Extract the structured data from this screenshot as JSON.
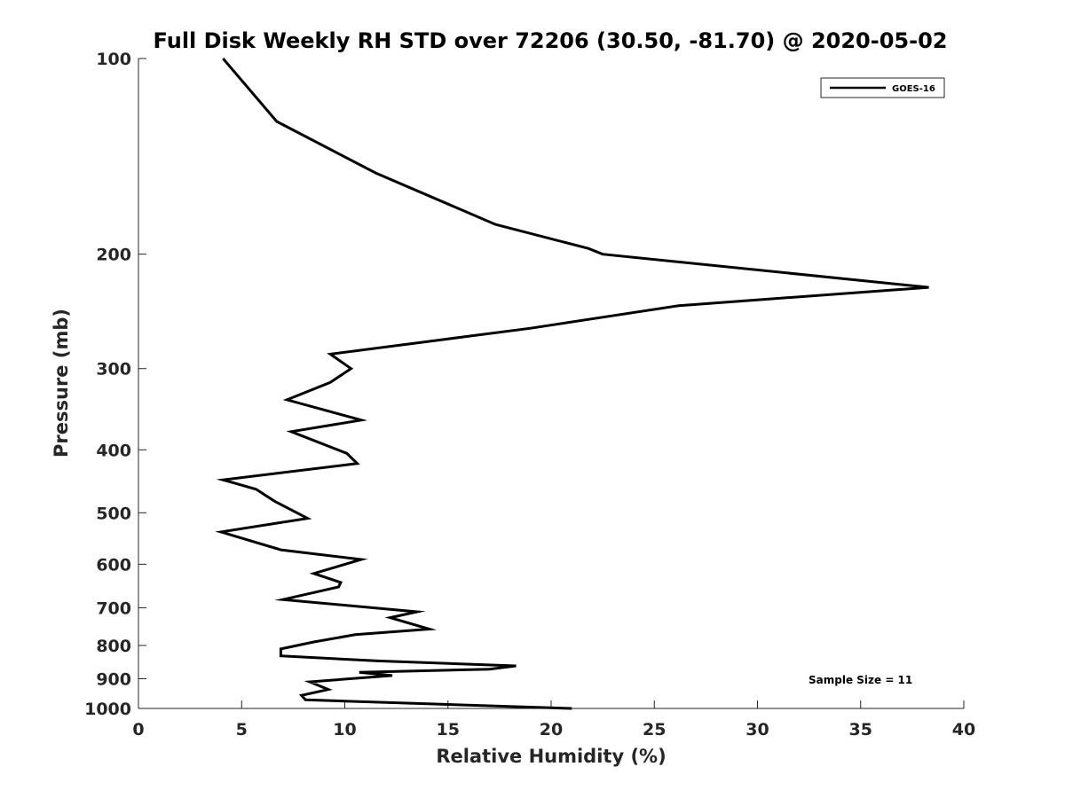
{
  "chart_data": {
    "type": "line",
    "title": "Full Disk Weekly RH STD over 72206 (30.50, -81.70) @ 2020-05-02",
    "xlabel": "Relative Humidity (%)",
    "ylabel": "Pressure (mb)",
    "xlim": [
      0,
      40
    ],
    "ylim": [
      100,
      1000
    ],
    "yscale": "log",
    "y_reversed": true,
    "x_ticks": [
      "0",
      "5",
      "10",
      "15",
      "20",
      "25",
      "30",
      "35",
      "40"
    ],
    "y_ticks": [
      "100",
      "200",
      "300",
      "400",
      "500",
      "600",
      "700",
      "800",
      "900",
      "1000"
    ],
    "grid": false,
    "legend_position": "top-right",
    "annotation": "Sample Size = 11",
    "series": [
      {
        "name": "GOES-16",
        "color": "#000000",
        "x": [
          4.1,
          6.7,
          11.5,
          17.3,
          21.8,
          22.5,
          38.3,
          26.2,
          19.0,
          9.3,
          10.3,
          9.3,
          7.2,
          10.8,
          7.4,
          10.1,
          10.6,
          4.1,
          5.7,
          6.6,
          8.2,
          4.0,
          6.9,
          10.8,
          8.5,
          9.8,
          9.7,
          7.0,
          13.5,
          12.2,
          14.1,
          10.5,
          8.5,
          6.9,
          6.9,
          11.6,
          18.3,
          17.0,
          10.7,
          12.3,
          8.3,
          9.2,
          7.9,
          8.1,
          21.0
        ],
        "y": [
          100,
          125,
          150,
          180,
          196,
          200,
          225,
          240,
          260,
          285,
          300,
          315,
          335,
          360,
          375,
          405,
          420,
          445,
          460,
          480,
          510,
          535,
          570,
          590,
          620,
          640,
          650,
          680,
          710,
          725,
          755,
          770,
          790,
          810,
          830,
          845,
          860,
          870,
          880,
          890,
          910,
          935,
          955,
          970,
          1000
        ]
      }
    ]
  }
}
